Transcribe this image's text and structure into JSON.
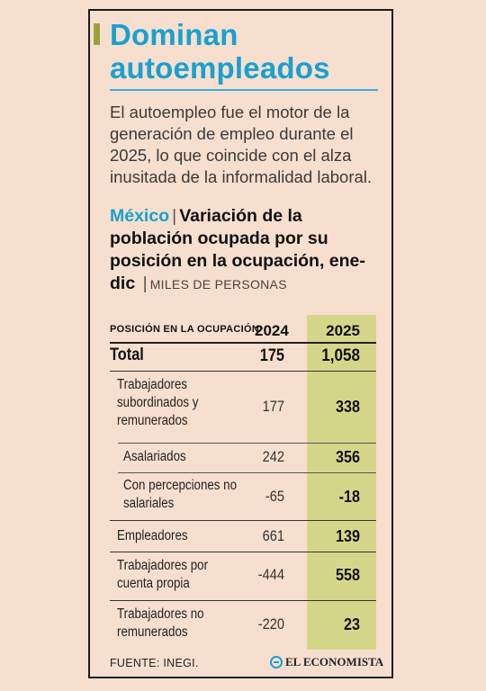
{
  "headline": "Dominan autoempleados",
  "lede": "El autoempleo fue el motor de la generación de empleo durante el 2025, lo que coincide con el alza inusitada de la informalidad laboral.",
  "chart": {
    "country": "México",
    "title": "Variación de la población ocupada por su posición en la ocupación, ene-dic",
    "units": "MILES DE PERSONAS"
  },
  "table": {
    "header": {
      "label": "POSICIÓN EN LA OCUPACIÓN",
      "col_a": "2024",
      "col_b": "2025"
    },
    "rows": [
      {
        "label": "Total",
        "a": "175",
        "b": "1,058"
      },
      {
        "label": "Trabajadores subordinados y remunerados",
        "a": "177",
        "b": "338"
      },
      {
        "label": "Asalariados",
        "a": "242",
        "b": "356"
      },
      {
        "label": "Con percepciones no salariales",
        "a": "-65",
        "b": "-18"
      },
      {
        "label": "Empleadores",
        "a": "661",
        "b": "139"
      },
      {
        "label": "Trabajadores por cuenta propia",
        "a": "-444",
        "b": "558"
      },
      {
        "label": "Trabajadores no remunerados",
        "a": "-220",
        "b": "23"
      }
    ]
  },
  "chart_data": {
    "type": "table",
    "columns": [
      "POSICIÓN EN LA OCUPACIÓN",
      "2024",
      "2025"
    ],
    "rows": [
      [
        "Total",
        175,
        1058
      ],
      [
        "Trabajadores subordinados y remunerados",
        177,
        338
      ],
      [
        "Asalariados",
        242,
        356
      ],
      [
        "Con percepciones no salariales",
        -65,
        -18
      ],
      [
        "Empleadores",
        661,
        139
      ],
      [
        "Trabajadores por cuenta propia",
        -444,
        558
      ],
      [
        "Trabajadores no remunerados",
        -220,
        23
      ]
    ]
  },
  "footer": {
    "source": "FUENTE: INEGI.",
    "brand": "EL ECONOMISTA"
  },
  "colors": {
    "accent_blue": "#1aa0cf",
    "accent_green": "#9aa33a",
    "highlight": "#d6d68a",
    "background": "#f6dfcf"
  }
}
